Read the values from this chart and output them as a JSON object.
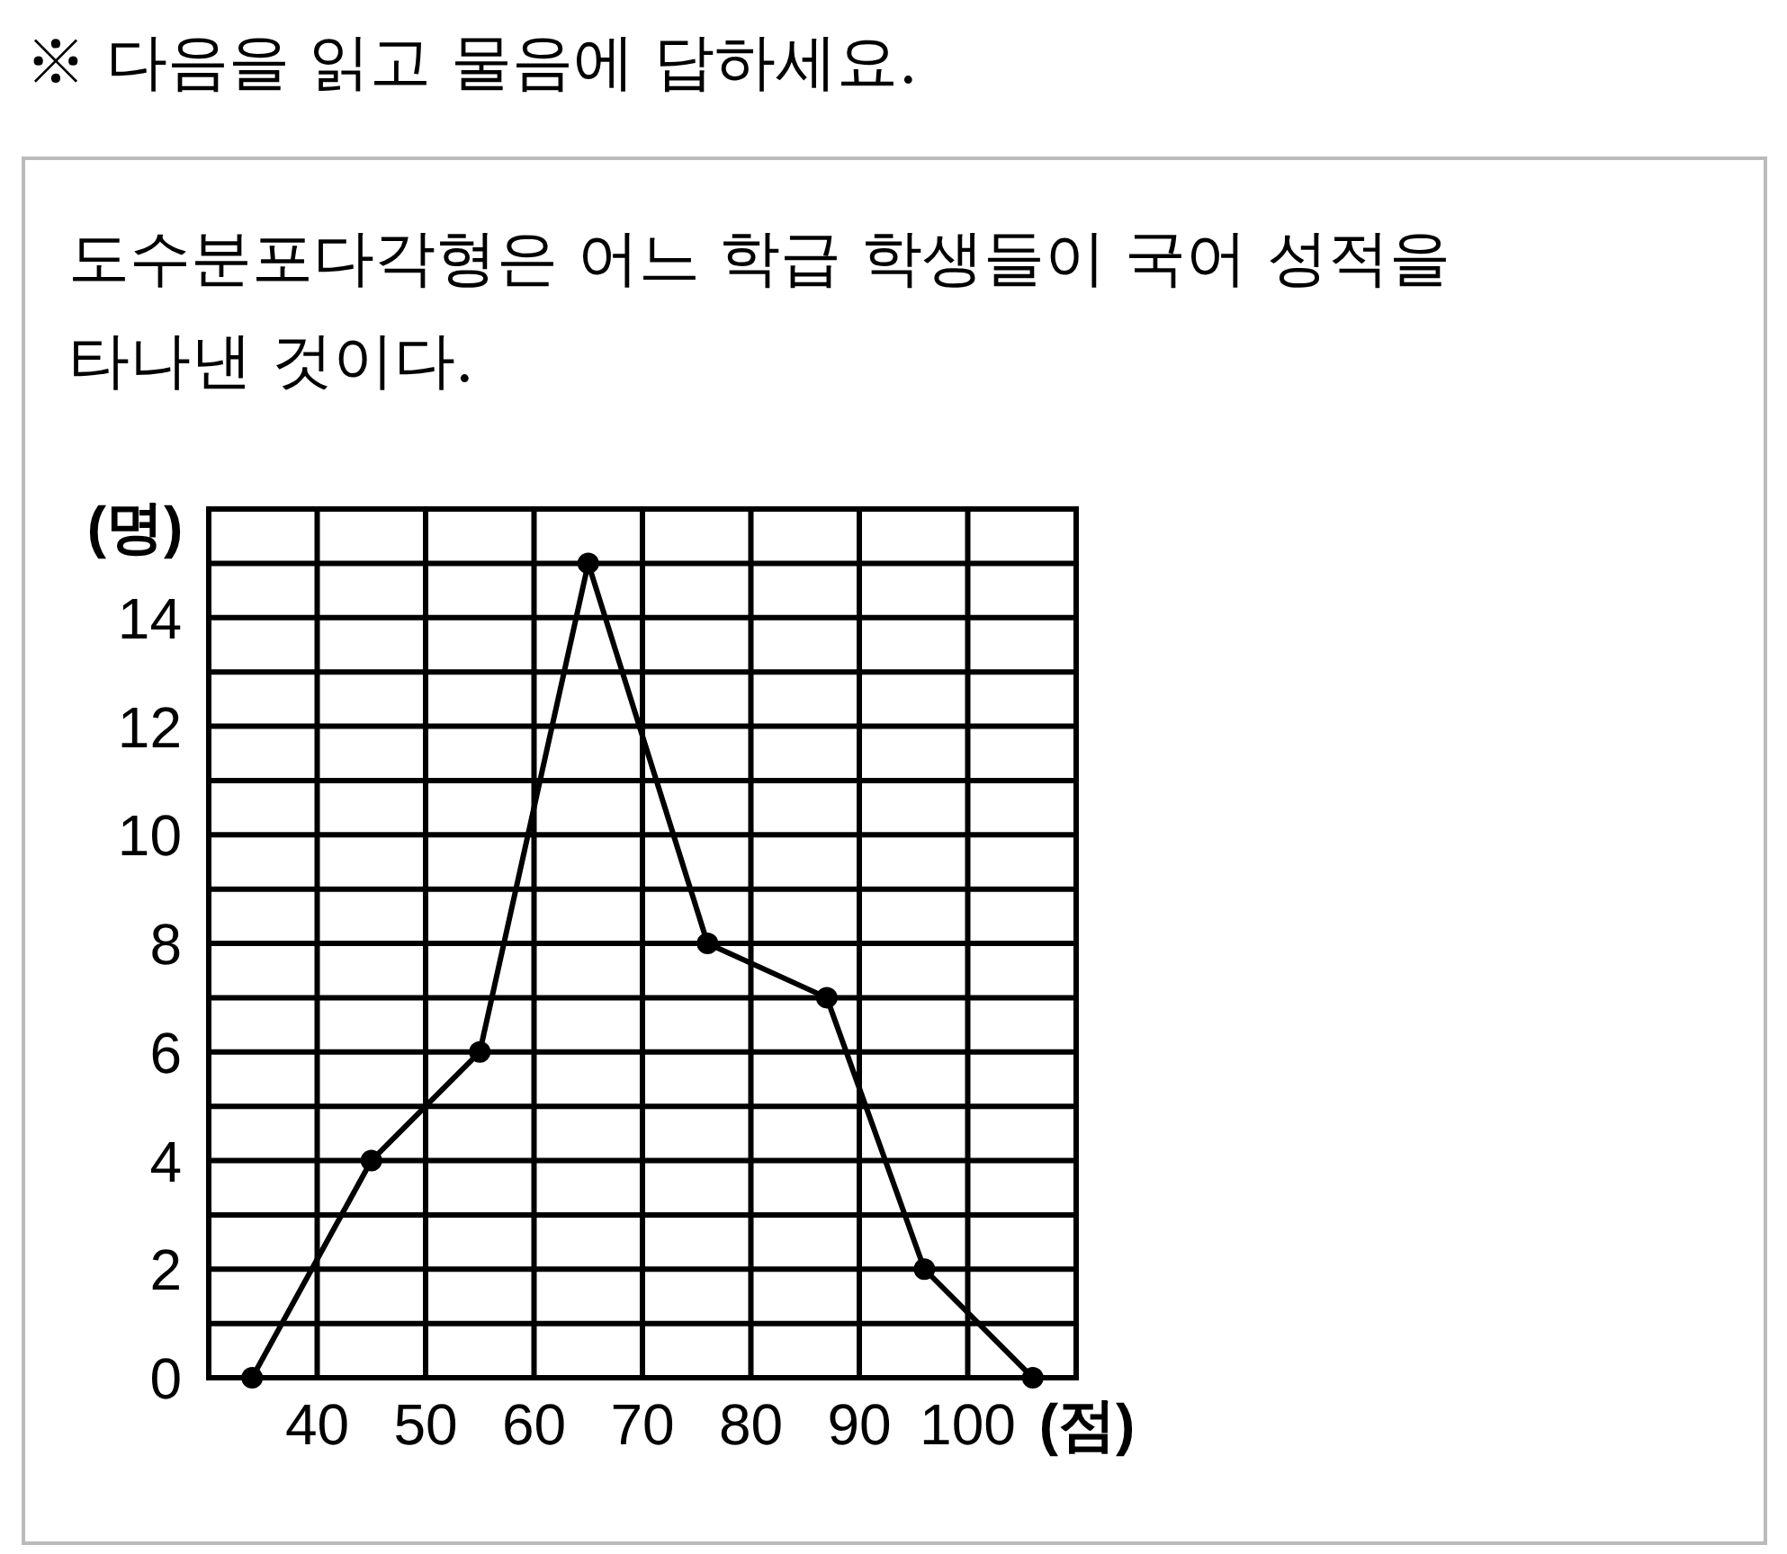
{
  "chart_data": {
    "type": "line",
    "title": "※ 다음을 읽고 물음에 답하세요.",
    "subtitle": "도수분포다각형은 어느 학급 학생들이 국어 성적을 타나낸 것이다.",
    "ylabel": "(명)",
    "xlabel": "(점)",
    "x": [
      34,
      45,
      55,
      65,
      76,
      87,
      96,
      106
    ],
    "series": [
      {
        "color": "#000000",
        "values": [
          0,
          4,
          6,
          15,
          8,
          7,
          2,
          0
        ]
      }
    ],
    "xlim": [
      30,
      110
    ],
    "ylim": [
      0,
      16
    ],
    "xticks": [
      {
        "value": 30,
        "label": null
      },
      40,
      50,
      60,
      70,
      80,
      90,
      100,
      {
        "value": 110,
        "label": null
      }
    ],
    "yticks": [
      0,
      {
        "value": 1,
        "label": null
      },
      2,
      {
        "value": 3,
        "label": null
      },
      4,
      {
        "value": 5,
        "label": null
      },
      6,
      {
        "value": 7,
        "label": null
      },
      8,
      {
        "value": 9,
        "label": null
      },
      10,
      {
        "value": 11,
        "label": null
      },
      12,
      {
        "value": 13,
        "label": null
      },
      14,
      {
        "value": 15,
        "label": null
      },
      {
        "value": 16,
        "label": null
      }
    ],
    "grid": true,
    "marker": "circle",
    "line_style": "solid"
  }
}
